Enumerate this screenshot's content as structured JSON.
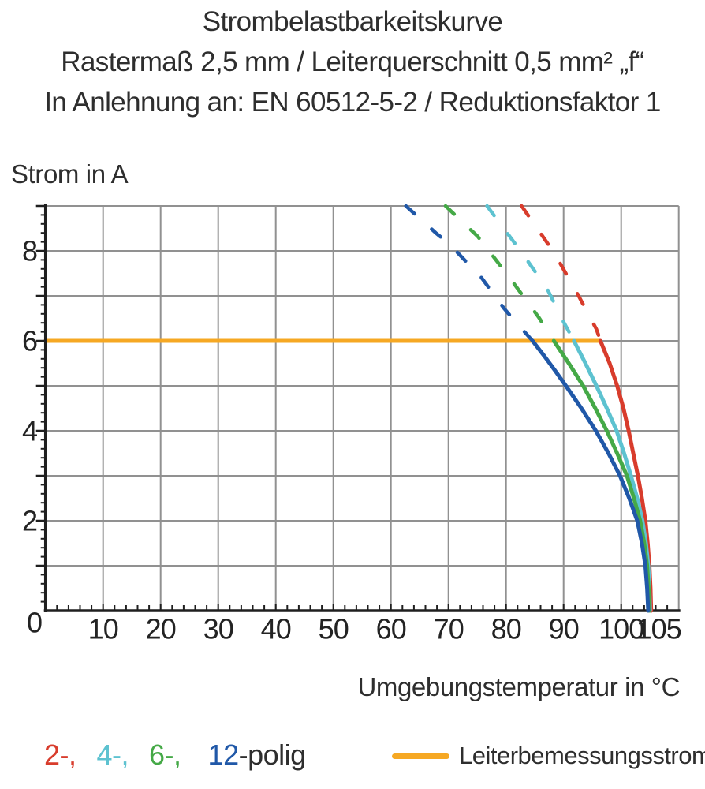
{
  "header": {
    "title": "Strombelastbarkeitskurve",
    "subtitle": "Rastermaß 2,5 mm / Leiterquerschnitt 0,5 mm² „f“",
    "note": "In Anlehnung an: EN 60512-5-2 / Reduktionsfaktor 1"
  },
  "chart_data": {
    "type": "line",
    "title": "Strombelastbarkeitskurve",
    "xlabel": "Umgebungstemperatur in °C",
    "ylabel": "Strom in A",
    "xlim": [
      0,
      110
    ],
    "ylim": [
      0,
      9
    ],
    "grid": true,
    "axes": {
      "x": {
        "min": 0,
        "max": 110,
        "gridline_step": 10,
        "minor_tick_step": 2,
        "tick_labels": [
          {
            "v": 10,
            "t": "10"
          },
          {
            "v": 20,
            "t": "20"
          },
          {
            "v": 30,
            "t": "30"
          },
          {
            "v": 40,
            "t": "40"
          },
          {
            "v": 50,
            "t": "50"
          },
          {
            "v": 60,
            "t": "60"
          },
          {
            "v": 70,
            "t": "70"
          },
          {
            "v": 80,
            "t": "80"
          },
          {
            "v": 90,
            "t": "90"
          },
          {
            "v": 100,
            "t": "100"
          },
          {
            "v": 105,
            "t": "105",
            "dx": 11
          }
        ]
      },
      "y": {
        "min": 0,
        "max": 9,
        "gridline_step": 1,
        "minor_tick_step": 0.2,
        "tick_labels": [
          {
            "v": 0,
            "t": "0",
            "dx": 6,
            "dy": 15
          },
          {
            "v": 2,
            "t": "2"
          },
          {
            "v": 4,
            "t": "4"
          },
          {
            "v": 6,
            "t": "6"
          },
          {
            "v": 8,
            "t": "8"
          }
        ]
      }
    },
    "reference_line": {
      "label": "Leiterbemessungsstrom",
      "color": "#f6a823",
      "y": 6,
      "x_start": 0,
      "x_end": 96.3
    },
    "series": [
      {
        "name": "2-polig",
        "color": "#d83c2c",
        "dashed": [
          [
            82.7,
            9.0
          ],
          [
            88.4,
            7.95
          ],
          [
            92.6,
            7.0
          ],
          [
            95.7,
            6.26
          ],
          [
            96.4,
            6.0
          ]
        ],
        "solid": [
          [
            96.4,
            6.0
          ],
          [
            98.0,
            5.5
          ],
          [
            99.3,
            5.0
          ],
          [
            100.4,
            4.5
          ],
          [
            101.3,
            4.0
          ],
          [
            102.1,
            3.5
          ],
          [
            102.9,
            3.0
          ],
          [
            103.6,
            2.5
          ],
          [
            104.2,
            2.0
          ],
          [
            104.6,
            1.5
          ],
          [
            104.9,
            1.0
          ],
          [
            105.1,
            0.5
          ],
          [
            105.2,
            0.0
          ]
        ]
      },
      {
        "name": "4-polig",
        "color": "#5dc2d0",
        "dashed": [
          [
            76.7,
            9.0
          ],
          [
            82.5,
            8.0
          ],
          [
            87.1,
            7.17
          ],
          [
            90.0,
            6.42
          ],
          [
            91.8,
            6.0
          ]
        ],
        "solid": [
          [
            91.8,
            6.0
          ],
          [
            93.8,
            5.5
          ],
          [
            95.7,
            5.0
          ],
          [
            97.5,
            4.5
          ],
          [
            99.2,
            4.0
          ],
          [
            100.5,
            3.5
          ],
          [
            101.7,
            3.0
          ],
          [
            102.8,
            2.5
          ],
          [
            103.7,
            2.0
          ],
          [
            104.3,
            1.5
          ],
          [
            104.7,
            1.0
          ],
          [
            104.9,
            0.5
          ],
          [
            105.0,
            0.0
          ]
        ]
      },
      {
        "name": "6-polig",
        "color": "#45a947",
        "dashed": [
          [
            69.5,
            9.0
          ],
          [
            75.1,
            8.32
          ],
          [
            80.3,
            7.46
          ],
          [
            85.7,
            6.52
          ],
          [
            88.3,
            6.0
          ]
        ],
        "solid": [
          [
            88.3,
            6.0
          ],
          [
            90.9,
            5.5
          ],
          [
            93.4,
            5.0
          ],
          [
            95.5,
            4.5
          ],
          [
            97.5,
            4.0
          ],
          [
            99.3,
            3.5
          ],
          [
            101.0,
            3.0
          ],
          [
            102.2,
            2.5
          ],
          [
            103.3,
            2.0
          ],
          [
            104.0,
            1.5
          ],
          [
            104.5,
            1.0
          ],
          [
            104.75,
            0.5
          ],
          [
            104.9,
            0.0
          ]
        ]
      },
      {
        "name": "12-polig",
        "color": "#2058a8",
        "dashed": [
          [
            62.6,
            9.0
          ],
          [
            67.8,
            8.4
          ],
          [
            70.1,
            8.16
          ],
          [
            73.3,
            7.73
          ],
          [
            75.7,
            7.41
          ],
          [
            79.6,
            6.73
          ],
          [
            81.4,
            6.46
          ],
          [
            84.6,
            6.0
          ]
        ],
        "solid": [
          [
            84.6,
            6.0
          ],
          [
            86.6,
            5.67
          ],
          [
            88.5,
            5.34
          ],
          [
            90.4,
            5.0
          ],
          [
            93.1,
            4.5
          ],
          [
            95.6,
            4.0
          ],
          [
            97.8,
            3.5
          ],
          [
            99.8,
            3.0
          ],
          [
            101.4,
            2.5
          ],
          [
            102.8,
            2.0
          ],
          [
            103.6,
            1.5
          ],
          [
            104.2,
            1.0
          ],
          [
            104.5,
            0.5
          ],
          [
            104.7,
            0.0
          ]
        ]
      }
    ]
  },
  "legend": {
    "pole_entries": [
      {
        "text": "2-,",
        "color": "#d83c2c",
        "gap": 26
      },
      {
        "text": "4-,",
        "color": "#5dc2d0",
        "gap": 26
      },
      {
        "text": "6-,",
        "color": "#45a947",
        "gap": 34
      },
      {
        "text": "12",
        "color": "#2058a8",
        "gap": 0
      },
      {
        "text": "-polig",
        "color": "#2e2e2e",
        "gap": 0
      }
    ]
  },
  "colors": {
    "grid": "#919191",
    "axis": "#1f1f1f",
    "text": "#2e2e2e",
    "reference": "#f6a823"
  }
}
